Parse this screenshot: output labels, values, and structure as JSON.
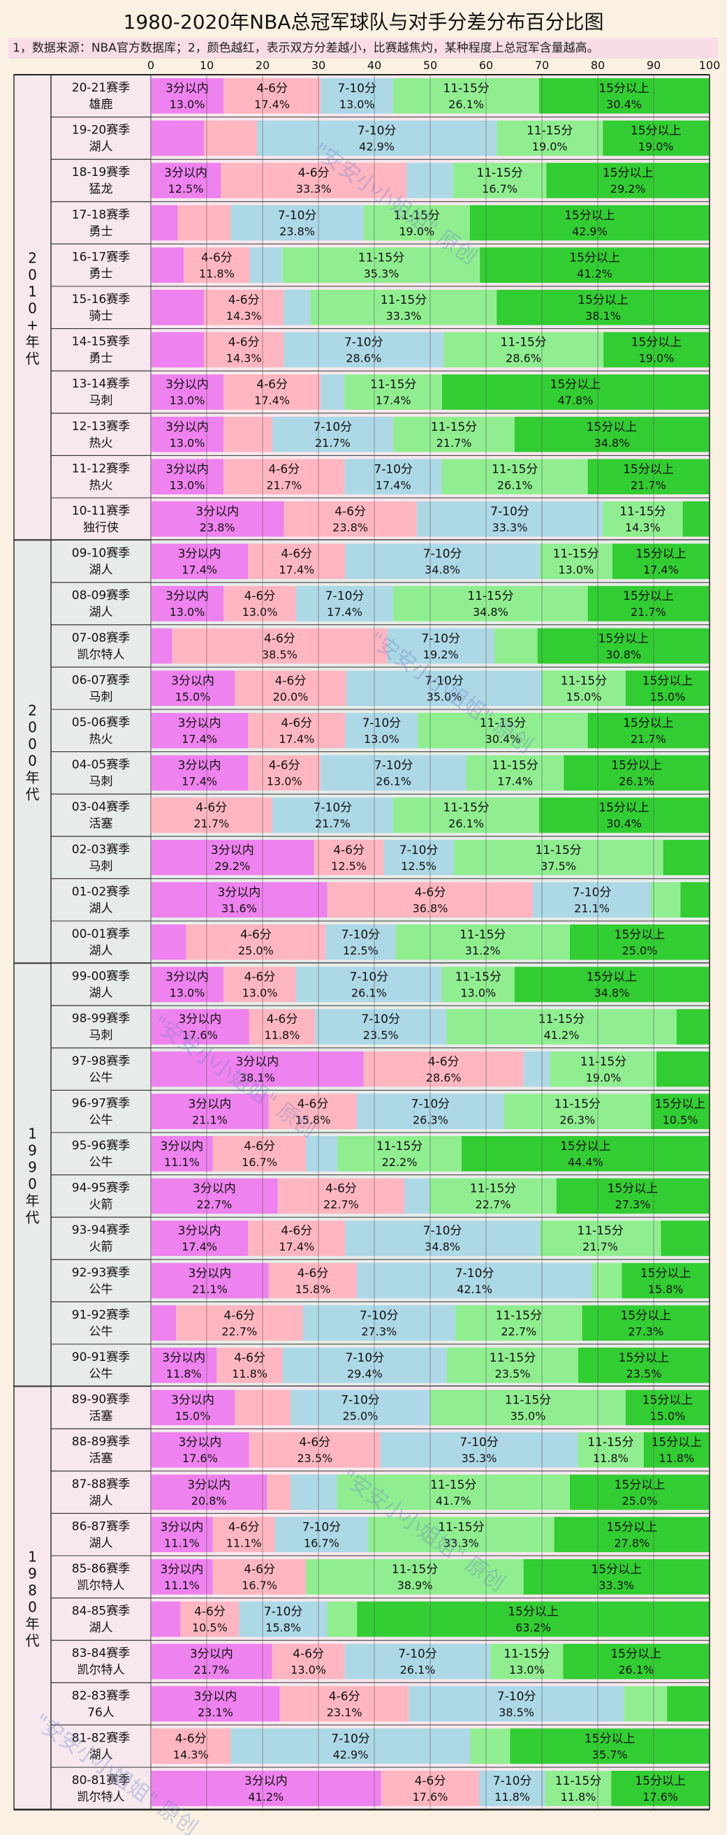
{
  "chart_data": {
    "type": "bar",
    "orientation": "horizontal",
    "stacked": true,
    "title": "1980-2020年NBA总冠军球队与对手分差分布百分比图",
    "note": "1，数据来源：NBA官方数据库；2，颜色越红，表示双方分差越小，比赛越焦灼，某种程度上总冠军含量越高。",
    "xlim": [
      0,
      100
    ],
    "x_ticks": [
      "0",
      "10",
      "20",
      "30",
      "40",
      "50",
      "60",
      "70",
      "80",
      "90",
      "100"
    ],
    "grid": true,
    "legend": "none",
    "watermark": "\"安安小小姐姐\" 原创",
    "categories_labels": [
      "3分以内",
      "4-6分",
      "7-10分",
      "11-15分",
      "15分以上"
    ],
    "colors": [
      "#ee82ee",
      "#ffb6c1",
      "#add8e6",
      "#90ee90",
      "#32cd32"
    ],
    "groups": [
      {
        "name": "2010+年代",
        "bg": "#f7e8ee",
        "rows": [
          {
            "season": "20-21赛季",
            "team": "雄鹿",
            "v": [
              13.0,
              17.4,
              13.0,
              26.1,
              30.4
            ],
            "show": [
              1,
              1,
              1,
              1,
              1
            ]
          },
          {
            "season": "19-20赛季",
            "team": "湖人",
            "v": [
              9.5,
              9.5,
              42.9,
              19.0,
              19.0
            ],
            "show": [
              0,
              0,
              1,
              1,
              1
            ]
          },
          {
            "season": "18-19赛季",
            "team": "猛龙",
            "v": [
              12.5,
              33.3,
              8.3,
              16.7,
              29.2
            ],
            "show": [
              1,
              1,
              0,
              1,
              1
            ]
          },
          {
            "season": "17-18赛季",
            "team": "勇士",
            "v": [
              4.8,
              9.5,
              23.8,
              19.0,
              42.9
            ],
            "show": [
              0,
              0,
              1,
              1,
              1
            ]
          },
          {
            "season": "16-17赛季",
            "team": "勇士",
            "v": [
              5.9,
              11.8,
              5.9,
              35.3,
              41.2
            ],
            "show": [
              0,
              1,
              0,
              1,
              1
            ]
          },
          {
            "season": "15-16赛季",
            "team": "骑士",
            "v": [
              9.5,
              14.3,
              4.8,
              33.3,
              38.1
            ],
            "show": [
              0,
              1,
              0,
              1,
              1
            ]
          },
          {
            "season": "14-15赛季",
            "team": "勇士",
            "v": [
              9.5,
              14.3,
              28.6,
              28.6,
              19.0
            ],
            "show": [
              0,
              1,
              1,
              1,
              1
            ]
          },
          {
            "season": "13-14赛季",
            "team": "马刺",
            "v": [
              13.0,
              17.4,
              4.3,
              17.4,
              47.8
            ],
            "show": [
              1,
              1,
              0,
              1,
              1
            ]
          },
          {
            "season": "12-13赛季",
            "team": "热火",
            "v": [
              13.0,
              8.7,
              21.7,
              21.7,
              34.8
            ],
            "show": [
              1,
              0,
              1,
              1,
              1
            ]
          },
          {
            "season": "11-12赛季",
            "team": "热火",
            "v": [
              13.0,
              21.7,
              17.4,
              26.1,
              21.7
            ],
            "show": [
              1,
              1,
              1,
              1,
              1
            ]
          },
          {
            "season": "10-11赛季",
            "team": "独行侠",
            "v": [
              23.8,
              23.8,
              33.3,
              14.3,
              4.8
            ],
            "show": [
              1,
              1,
              1,
              1,
              0
            ]
          }
        ]
      },
      {
        "name": "2000年代",
        "bg": "#e8ece9",
        "rows": [
          {
            "season": "09-10赛季",
            "team": "湖人",
            "v": [
              17.4,
              17.4,
              34.8,
              13.0,
              17.4
            ],
            "show": [
              1,
              1,
              1,
              1,
              1
            ]
          },
          {
            "season": "08-09赛季",
            "team": "湖人",
            "v": [
              13.0,
              13.0,
              17.4,
              34.8,
              21.7
            ],
            "show": [
              1,
              1,
              1,
              1,
              1
            ]
          },
          {
            "season": "07-08赛季",
            "team": "凯尔特人",
            "v": [
              3.8,
              38.5,
              19.2,
              7.7,
              30.8
            ],
            "show": [
              0,
              1,
              1,
              0,
              1
            ]
          },
          {
            "season": "06-07赛季",
            "team": "马刺",
            "v": [
              15.0,
              20.0,
              35.0,
              15.0,
              15.0
            ],
            "show": [
              1,
              1,
              1,
              1,
              1
            ]
          },
          {
            "season": "05-06赛季",
            "team": "热火",
            "v": [
              17.4,
              17.4,
              13.0,
              30.4,
              21.7
            ],
            "show": [
              1,
              1,
              1,
              1,
              1
            ]
          },
          {
            "season": "04-05赛季",
            "team": "马刺",
            "v": [
              17.4,
              13.0,
              26.1,
              17.4,
              26.1
            ],
            "show": [
              1,
              1,
              1,
              1,
              1
            ]
          },
          {
            "season": "03-04赛季",
            "team": "活塞",
            "v": [
              0,
              21.7,
              21.7,
              26.1,
              30.4
            ],
            "show": [
              0,
              1,
              1,
              1,
              1
            ]
          },
          {
            "season": "02-03赛季",
            "team": "马刺",
            "v": [
              29.2,
              12.5,
              12.5,
              37.5,
              8.3
            ],
            "show": [
              1,
              1,
              1,
              1,
              0
            ]
          },
          {
            "season": "01-02赛季",
            "team": "湖人",
            "v": [
              31.6,
              36.8,
              21.1,
              5.3,
              5.3
            ],
            "show": [
              1,
              1,
              1,
              0,
              0
            ]
          },
          {
            "season": "00-01赛季",
            "team": "湖人",
            "v": [
              6.3,
              25.0,
              12.5,
              31.2,
              25.0
            ],
            "show": [
              0,
              1,
              1,
              1,
              1
            ]
          }
        ]
      },
      {
        "name": "1990年代",
        "bg": "#e8ece9",
        "rows": [
          {
            "season": "99-00赛季",
            "team": "湖人",
            "v": [
              13.0,
              13.0,
              26.1,
              13.0,
              34.8
            ],
            "show": [
              1,
              1,
              1,
              1,
              1
            ]
          },
          {
            "season": "98-99赛季",
            "team": "马刺",
            "v": [
              17.6,
              11.8,
              23.5,
              41.2,
              5.9
            ],
            "show": [
              1,
              1,
              1,
              1,
              0
            ]
          },
          {
            "season": "97-98赛季",
            "team": "公牛",
            "v": [
              38.1,
              28.6,
              4.8,
              19.0,
              9.5
            ],
            "show": [
              1,
              1,
              0,
              1,
              0
            ]
          },
          {
            "season": "96-97赛季",
            "team": "公牛",
            "v": [
              21.1,
              15.8,
              26.3,
              26.3,
              10.5
            ],
            "show": [
              1,
              1,
              1,
              1,
              1
            ]
          },
          {
            "season": "95-96赛季",
            "team": "公牛",
            "v": [
              11.1,
              16.7,
              5.6,
              22.2,
              44.4
            ],
            "show": [
              1,
              1,
              0,
              1,
              1
            ]
          },
          {
            "season": "94-95赛季",
            "team": "火箭",
            "v": [
              22.7,
              22.7,
              4.5,
              22.7,
              27.3
            ],
            "show": [
              1,
              1,
              0,
              1,
              1
            ]
          },
          {
            "season": "93-94赛季",
            "team": "火箭",
            "v": [
              17.4,
              17.4,
              34.8,
              21.7,
              8.7
            ],
            "show": [
              1,
              1,
              1,
              1,
              0
            ]
          },
          {
            "season": "92-93赛季",
            "team": "公牛",
            "v": [
              21.1,
              15.8,
              42.1,
              5.3,
              15.8
            ],
            "show": [
              1,
              1,
              1,
              0,
              1
            ]
          },
          {
            "season": "91-92赛季",
            "team": "公牛",
            "v": [
              4.5,
              22.7,
              27.3,
              22.7,
              27.3
            ],
            "show": [
              0,
              1,
              1,
              1,
              1
            ]
          },
          {
            "season": "90-91赛季",
            "team": "公牛",
            "v": [
              11.8,
              11.8,
              29.4,
              23.5,
              23.5
            ],
            "show": [
              1,
              1,
              1,
              1,
              1
            ]
          }
        ]
      },
      {
        "name": "1980年代",
        "bg": "#f7e8ee",
        "rows": [
          {
            "season": "89-90赛季",
            "team": "活塞",
            "v": [
              15.0,
              10.0,
              25.0,
              35.0,
              15.0
            ],
            "show": [
              1,
              0,
              1,
              1,
              1
            ]
          },
          {
            "season": "88-89赛季",
            "team": "活塞",
            "v": [
              17.6,
              23.5,
              35.3,
              11.8,
              11.8
            ],
            "show": [
              1,
              1,
              1,
              1,
              1
            ]
          },
          {
            "season": "87-88赛季",
            "team": "湖人",
            "v": [
              20.8,
              4.2,
              8.3,
              41.7,
              25.0
            ],
            "show": [
              1,
              0,
              0,
              1,
              1
            ]
          },
          {
            "season": "86-87赛季",
            "team": "湖人",
            "v": [
              11.1,
              11.1,
              16.7,
              33.3,
              27.8
            ],
            "show": [
              1,
              1,
              1,
              1,
              1
            ]
          },
          {
            "season": "85-86赛季",
            "team": "凯尔特人",
            "v": [
              11.1,
              16.7,
              0,
              38.9,
              33.3
            ],
            "show": [
              1,
              1,
              0,
              1,
              1
            ]
          },
          {
            "season": "84-85赛季",
            "team": "湖人",
            "v": [
              5.3,
              10.5,
              15.8,
              5.3,
              63.2
            ],
            "show": [
              0,
              1,
              1,
              0,
              1
            ]
          },
          {
            "season": "83-84赛季",
            "team": "凯尔特人",
            "v": [
              21.7,
              13.0,
              26.1,
              13.0,
              26.1
            ],
            "show": [
              1,
              1,
              1,
              1,
              1
            ]
          },
          {
            "season": "82-83赛季",
            "team": "76人",
            "v": [
              23.1,
              23.1,
              38.5,
              7.7,
              7.7
            ],
            "show": [
              1,
              1,
              1,
              0,
              0
            ]
          },
          {
            "season": "81-82赛季",
            "team": "湖人",
            "v": [
              0,
              14.3,
              42.9,
              7.1,
              35.7
            ],
            "show": [
              0,
              1,
              1,
              0,
              1
            ]
          },
          {
            "season": "80-81赛季",
            "team": "凯尔特人",
            "v": [
              41.2,
              17.6,
              11.8,
              11.8,
              17.6
            ],
            "show": [
              1,
              1,
              1,
              1,
              1
            ]
          }
        ]
      }
    ]
  }
}
